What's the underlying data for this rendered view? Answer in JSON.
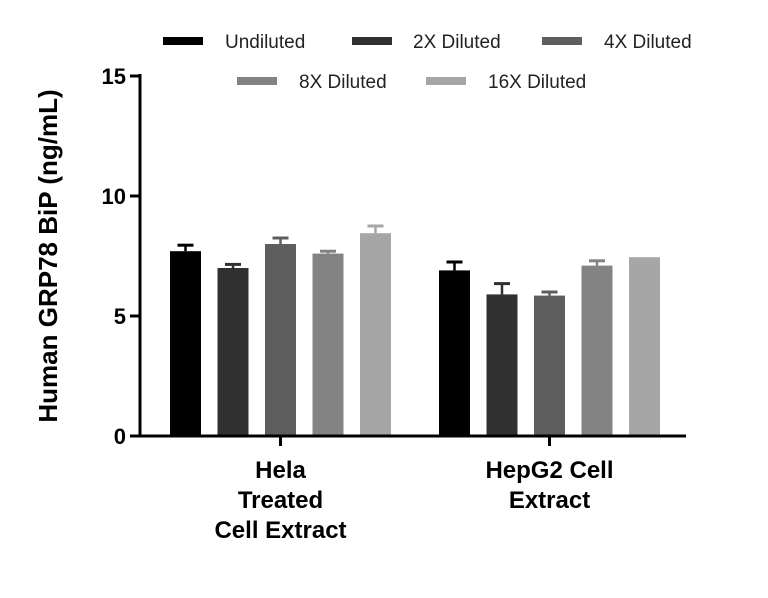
{
  "chart_data": {
    "type": "bar",
    "ylabel": "Human GRP78 BiP (ng/mL)",
    "xlabel": "",
    "ylim": [
      0,
      15
    ],
    "yticks": [
      0,
      5,
      10,
      15
    ],
    "categories": [
      [
        "Hela",
        "Treated",
        "Cell Extract"
      ],
      [
        "HepG2 Cell",
        "Extract"
      ]
    ],
    "series": [
      {
        "name": "Undiluted",
        "color": "#000000",
        "values": [
          7.7,
          6.9
        ],
        "errors": [
          0.25,
          0.35
        ]
      },
      {
        "name": "2X Diluted",
        "color": "#303030",
        "values": [
          7.0,
          5.9
        ],
        "errors": [
          0.15,
          0.45
        ]
      },
      {
        "name": "4X Diluted",
        "color": "#5e5e5e",
        "values": [
          8.0,
          5.85
        ],
        "errors": [
          0.25,
          0.15
        ]
      },
      {
        "name": "8X Diluted",
        "color": "#838383",
        "values": [
          7.6,
          7.1
        ],
        "errors": [
          0.1,
          0.2
        ]
      },
      {
        "name": "16X Diluted",
        "color": "#a6a6a6",
        "values": [
          8.45,
          7.45
        ],
        "errors": [
          0.3,
          0.0
        ]
      }
    ],
    "grid": false,
    "legend_position": "top"
  }
}
